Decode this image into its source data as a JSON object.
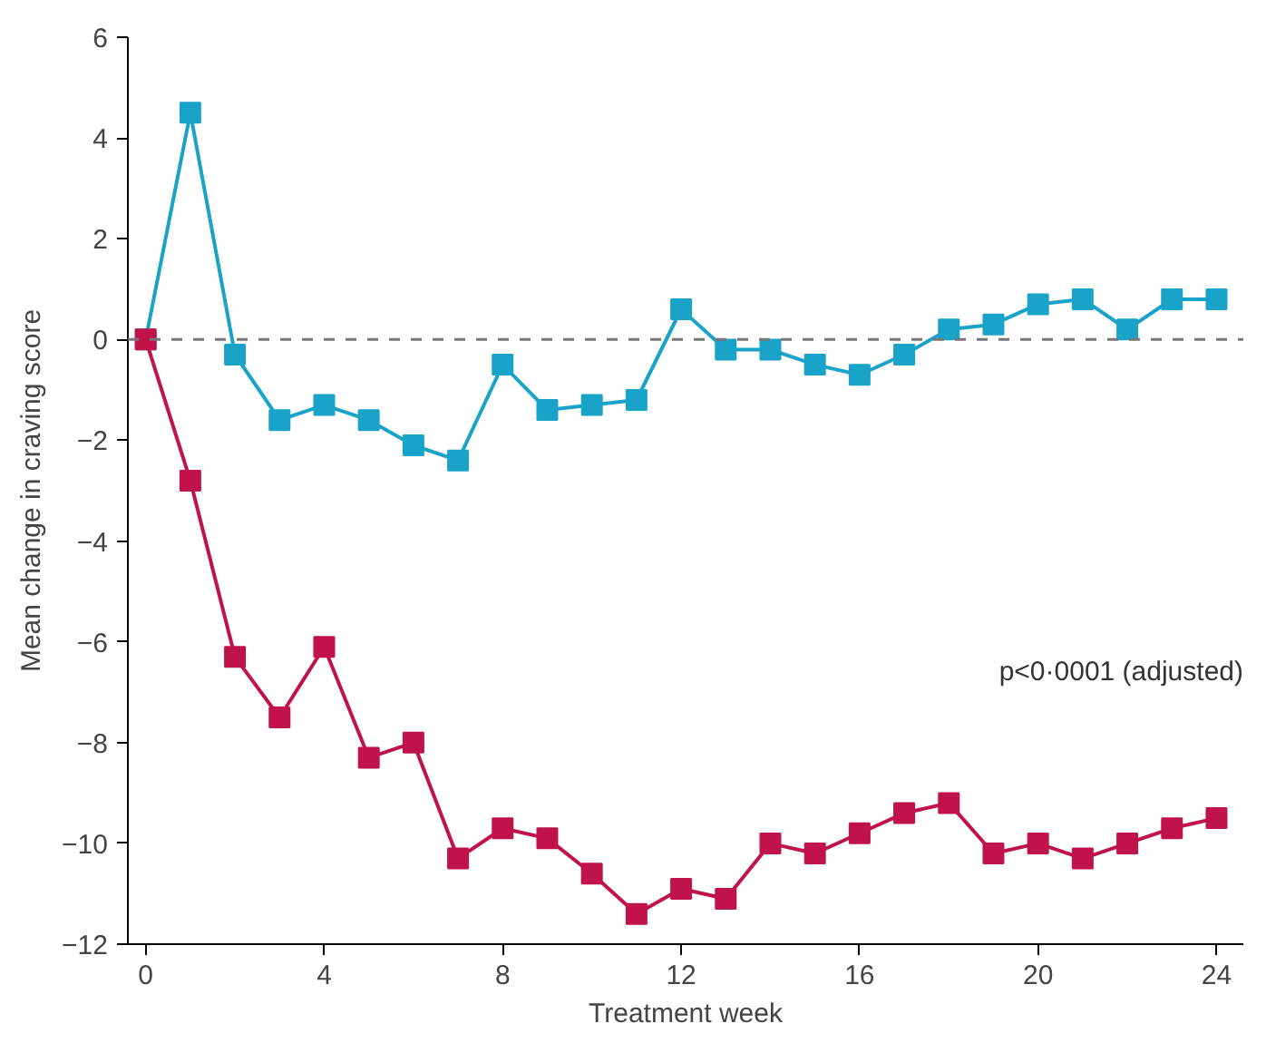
{
  "chart_data": {
    "type": "line",
    "xlabel": "Treatment week",
    "ylabel": "Mean change in craving score",
    "x": [
      0,
      1,
      2,
      3,
      4,
      5,
      6,
      7,
      8,
      9,
      10,
      11,
      12,
      13,
      14,
      15,
      16,
      17,
      18,
      19,
      20,
      21,
      22,
      23,
      24
    ],
    "series": [
      {
        "color": "#1aa3c8",
        "values": [
          0,
          4.5,
          -0.3,
          -1.6,
          -1.3,
          -1.6,
          -2.1,
          -2.4,
          -0.5,
          -1.4,
          -1.3,
          -1.2,
          0.6,
          -0.2,
          -0.2,
          -0.5,
          -0.7,
          -0.3,
          0.2,
          0.3,
          0.7,
          0.8,
          0.2,
          0.8,
          0.8
        ]
      },
      {
        "color": "#c0134a",
        "values": [
          0,
          -2.8,
          -6.3,
          -7.5,
          -6.1,
          -8.3,
          -8.0,
          -10.3,
          -9.7,
          -9.9,
          -10.6,
          -11.4,
          -10.9,
          -11.1,
          -10.0,
          -10.2,
          -9.8,
          -9.4,
          -9.2,
          -10.2,
          -10.0,
          -10.3,
          -10.0,
          -9.7,
          -9.5
        ]
      }
    ],
    "xlim": [
      -0.4,
      24.6
    ],
    "xticks": [
      0,
      4,
      8,
      12,
      16,
      20,
      24
    ],
    "ylim": [
      -12,
      6
    ],
    "yticks": [
      -12,
      -10,
      -8,
      -6,
      -4,
      -2,
      0,
      2,
      4,
      6
    ],
    "ref_lines": [
      {
        "axis": "y",
        "value": 0,
        "color": "#777777",
        "line_style": "dashed"
      }
    ],
    "annotations": [
      "p<0·0001 (adjusted)"
    ],
    "marker": "square",
    "line_style": "solid",
    "grid": false
  }
}
